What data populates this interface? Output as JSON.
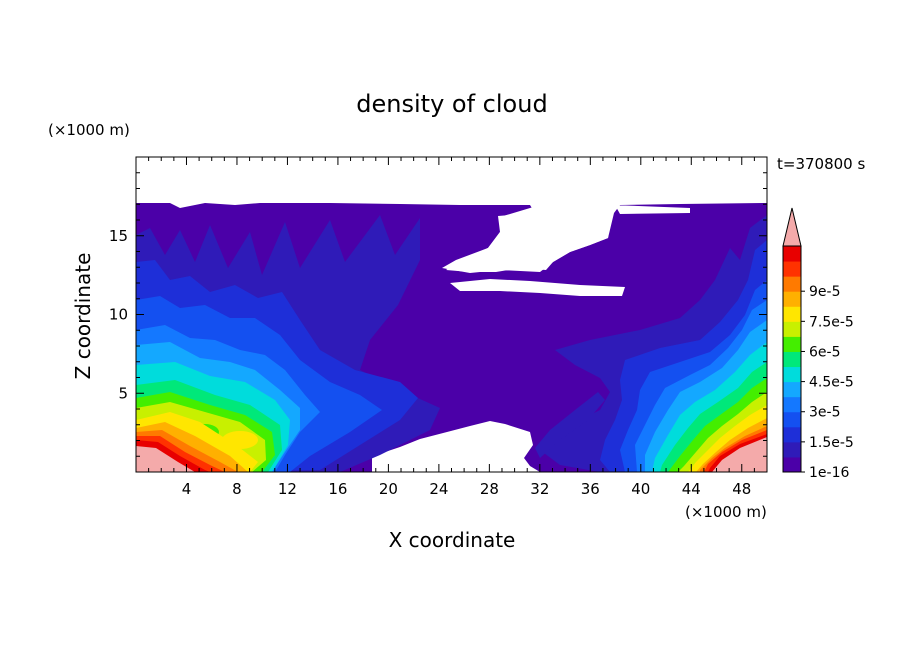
{
  "chart_data": {
    "type": "heatmap",
    "title": "density of cloud",
    "xlabel": "X coordinate",
    "ylabel": "Z coordinate",
    "x_unit": "(×1000 m)",
    "y_unit": "(×1000 m)",
    "time_label": "t=370800 s",
    "xlim": [
      0,
      50
    ],
    "ylim": [
      0,
      20
    ],
    "xticks": [
      "4",
      "8",
      "12",
      "16",
      "20",
      "24",
      "28",
      "32",
      "36",
      "40",
      "44",
      "48"
    ],
    "yticks": [
      "5",
      "10",
      "15"
    ],
    "colorbar": {
      "labels": [
        "1e-16",
        "1.5e-5",
        "3e-5",
        "4.5e-5",
        "6e-5",
        "7.5e-5",
        "9e-5"
      ],
      "levels": [
        1e-16,
        7.5e-06,
        1.5e-05,
        2.25e-05,
        3e-05,
        3.75e-05,
        4.5e-05,
        5.25e-05,
        6e-05,
        6.75e-05,
        7.5e-05,
        8.25e-05,
        9e-05,
        9.75e-05
      ],
      "colors": [
        "#4b00a8",
        "#2f1bb8",
        "#1e2fd8",
        "#1450f0",
        "#1478ff",
        "#14a8ff",
        "#00dcdc",
        "#00e87a",
        "#44ee00",
        "#c8f000",
        "#ffe600",
        "#ffb000",
        "#ff7a00",
        "#ff3200",
        "#e80000"
      ],
      "extend_color": "#f4aaaa"
    },
    "cloud_extent": {
      "top_km": 17,
      "left_plume_x_km": [
        0,
        12
      ],
      "right_plume_x_km": [
        39,
        50
      ],
      "max_density_regions": [
        {
          "x_km": [
            0,
            3
          ],
          "z_km": [
            0,
            2.5
          ]
        },
        {
          "x_km": [
            44,
            50
          ],
          "z_km": [
            0,
            2.5
          ]
        }
      ]
    }
  }
}
